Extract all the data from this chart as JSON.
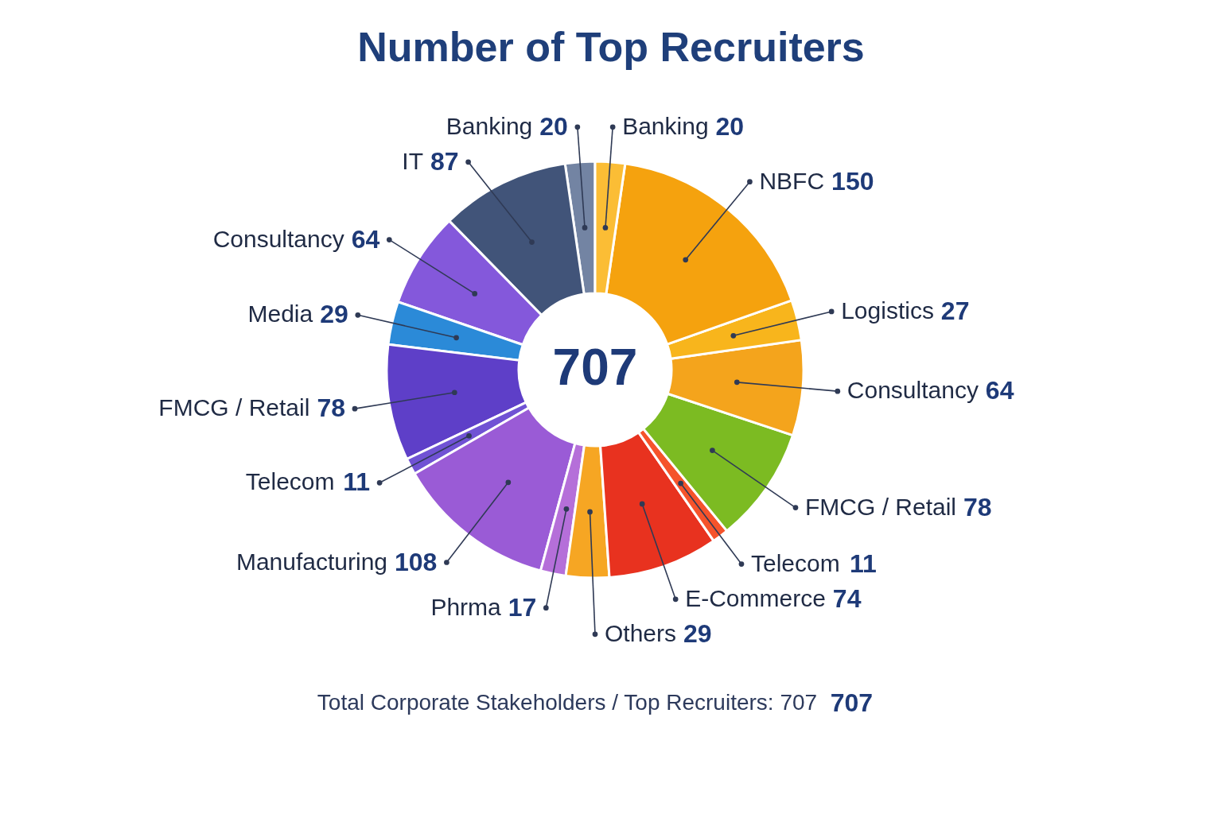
{
  "chart_data": {
    "type": "donut",
    "title": "Number of Top Recruiters",
    "categories": [
      "Banking",
      "IT",
      "Consultancy",
      "Media",
      "FMCG / Retail",
      "Telecom",
      "Manufacturing",
      "Phrma",
      "Others",
      "E-Commerce",
      "Telecom",
      "FMCG / Retail",
      "Consultancy",
      "Logistics",
      "NBFC",
      "Banking"
    ],
    "values": [
      20,
      87,
      64,
      29,
      78,
      11,
      108,
      17,
      29,
      74,
      11,
      78,
      64,
      27,
      150,
      20
    ],
    "colors": [
      "#7384a3",
      "#415479",
      "#8458db",
      "#2b8ad8",
      "#5e3fc8",
      "#7052d4",
      "#9a5bd6",
      "#b56fd9",
      "#f6a623",
      "#e8321f",
      "#f5532b",
      "#7cbb22",
      "#f4a41c",
      "#f8b51c",
      "#f5a20e",
      "#fbbd35"
    ],
    "data_labels": true,
    "annotations": [
      "707",
      "Total Corporate Stakeholders / Top Recruiters: 707",
      "707"
    ]
  }
}
